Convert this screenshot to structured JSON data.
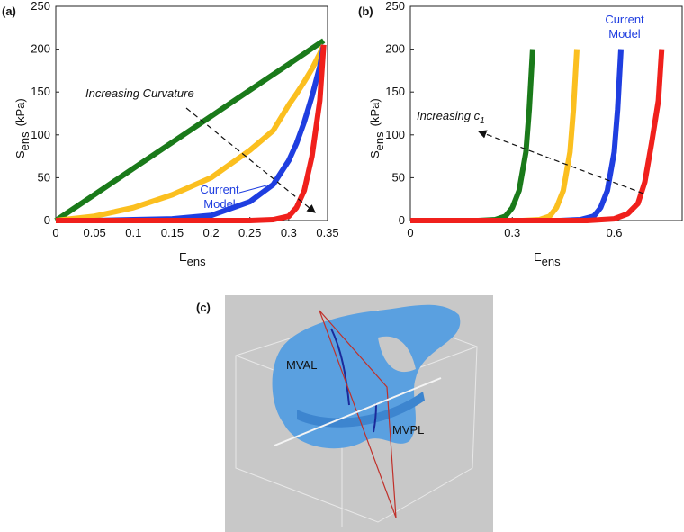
{
  "chart_data": [
    {
      "type": "line",
      "panel_label": "(a)",
      "xlabel": {
        "main": "E",
        "sub": "ens"
      },
      "ylabel": {
        "main": "S",
        "sub": "ens",
        "rest": "(kPa)"
      },
      "xlim": [
        0,
        0.35
      ],
      "ylim": [
        0,
        250
      ],
      "xticks": [
        0,
        0.05,
        0.1,
        0.15,
        0.2,
        0.25,
        0.3,
        0.35
      ],
      "yticks": [
        0,
        50,
        100,
        150,
        200,
        250
      ],
      "x": [
        0,
        0.05,
        0.1,
        0.15,
        0.2,
        0.25,
        0.28,
        0.3,
        0.31,
        0.32,
        0.33,
        0.34,
        0.345
      ],
      "series": [
        {
          "color": "#1a7a1a",
          "values": [
            0,
            30.4,
            60.9,
            91.3,
            121.7,
            152.2,
            170.4,
            182.6,
            188.7,
            194.8,
            200.9,
            207,
            210
          ]
        },
        {
          "color": "#fbbf1f",
          "values": [
            0,
            5,
            15,
            30,
            50,
            82,
            105,
            135,
            148,
            162,
            177,
            195,
            205
          ]
        },
        {
          "color": "#1f3ee0",
          "values": [
            0,
            0,
            1,
            2,
            6,
            22,
            42,
            70,
            90,
            115,
            145,
            180,
            205
          ]
        },
        {
          "color": "#f0201c",
          "values": [
            0,
            0,
            0,
            0,
            0,
            0,
            1,
            5,
            15,
            35,
            75,
            140,
            205
          ]
        }
      ],
      "annotations": {
        "curvature": "Increasing Curvature",
        "model": [
          "Current",
          "Model"
        ]
      }
    },
    {
      "type": "line",
      "panel_label": "(b)",
      "xlabel": {
        "main": "E",
        "sub": "ens"
      },
      "ylabel": {
        "main": "S",
        "sub": "ens",
        "rest": "(kPa)"
      },
      "xlim": [
        0,
        0.8
      ],
      "ylim": [
        0,
        250
      ],
      "xticks": [
        0,
        0.3,
        0.6
      ],
      "yticks": [
        0,
        50,
        100,
        150,
        200,
        250
      ],
      "series": [
        {
          "color": "#1a7a1a",
          "x": [
            0,
            0.2,
            0.25,
            0.28,
            0.3,
            0.32,
            0.34,
            0.35,
            0.36
          ],
          "values": [
            0,
            0,
            1,
            5,
            15,
            35,
            80,
            130,
            200
          ]
        },
        {
          "color": "#fbbf1f",
          "x": [
            0,
            0.33,
            0.38,
            0.41,
            0.43,
            0.45,
            0.47,
            0.48,
            0.49
          ],
          "values": [
            0,
            0,
            1,
            5,
            15,
            35,
            80,
            130,
            200
          ]
        },
        {
          "color": "#1f3ee0",
          "x": [
            0,
            0.44,
            0.5,
            0.54,
            0.56,
            0.58,
            0.6,
            0.61,
            0.62
          ],
          "values": [
            0,
            0,
            1,
            5,
            15,
            35,
            80,
            130,
            200
          ]
        },
        {
          "color": "#f0201c",
          "x": [
            0,
            0.52,
            0.6,
            0.64,
            0.67,
            0.69,
            0.71,
            0.73,
            0.74
          ],
          "values": [
            0,
            0,
            2,
            8,
            20,
            45,
            90,
            140,
            200
          ]
        }
      ],
      "annotations": {
        "increasing": {
          "main": "Increasing c",
          "sub": "1"
        },
        "model": [
          "Current",
          "Model"
        ]
      }
    }
  ],
  "image": {
    "panel_label": "(c)",
    "labels": [
      "MVAL",
      "MVPL"
    ]
  }
}
